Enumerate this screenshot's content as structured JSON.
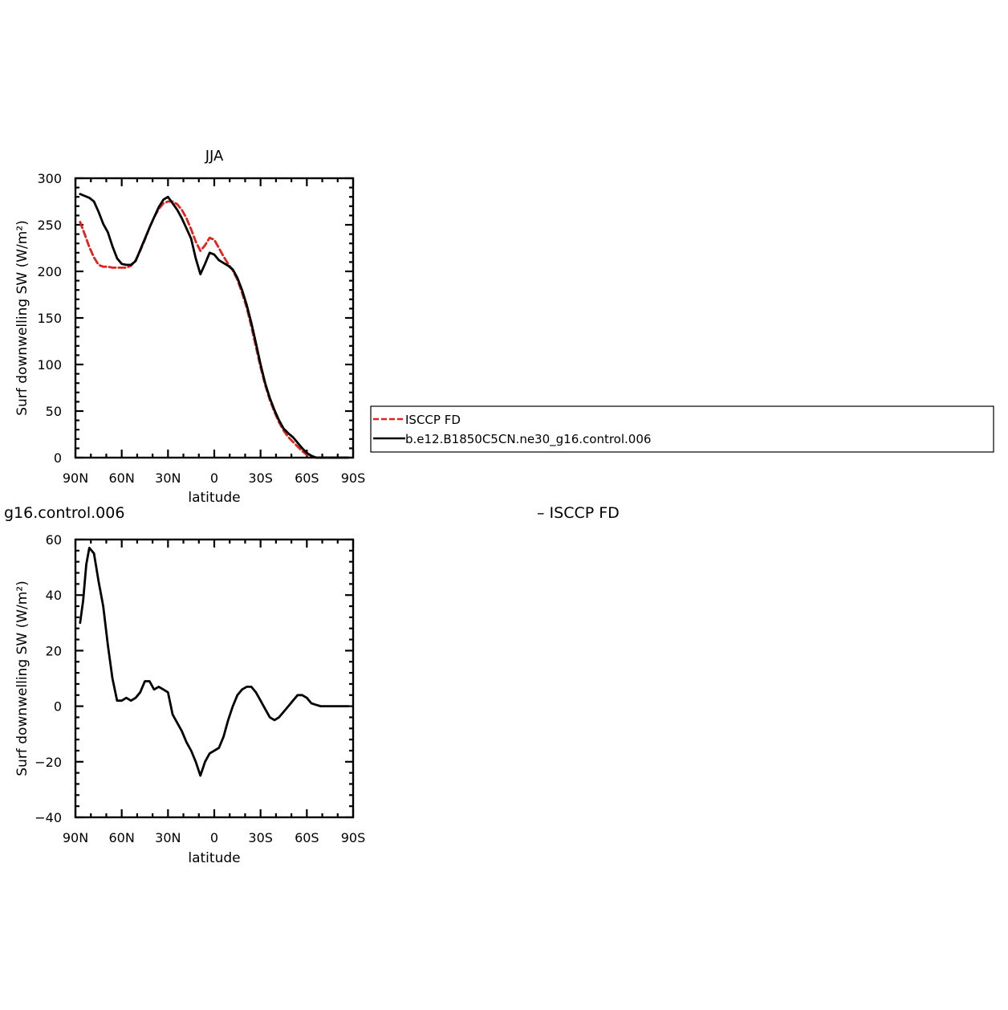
{
  "colors": {
    "obs": "#e8201a",
    "model": "#000000",
    "frame": "#000000"
  },
  "fragments": {
    "left": "g16.control.006",
    "right": "– ISCCP FD"
  },
  "legend": {
    "entries": [
      {
        "label": "ISCCP FD",
        "color": "#e8201a",
        "style": "dashed"
      },
      {
        "label": "b.e12.B1850C5CN.ne30_g16.control.006",
        "color": "#000000",
        "style": "solid"
      }
    ]
  },
  "chart_data": [
    {
      "type": "line",
      "title": "JJA",
      "xlabel": "latitude",
      "ylabel": "Surf downwelling SW (W/m²)",
      "xlim": [
        -90,
        90
      ],
      "ylim": [
        0,
        300
      ],
      "x_ticks": [
        -90,
        -60,
        -30,
        0,
        30,
        60,
        90
      ],
      "x_tick_labels": [
        "90N",
        "60N",
        "30N",
        "0",
        "30S",
        "60S",
        "90S"
      ],
      "y_ticks": [
        0,
        50,
        100,
        150,
        200,
        250,
        300
      ],
      "y_tick_labels": [
        "0",
        "50",
        "100",
        "150",
        "200",
        "250",
        "300"
      ],
      "series": [
        {
          "name": "ISCCP FD",
          "color": "#e8201a",
          "style": "dashed",
          "x": [
            -87,
            -84,
            -81,
            -78,
            -75,
            -72,
            -69,
            -66,
            -63,
            -60,
            -57,
            -54,
            -51,
            -48,
            -45,
            -42,
            -39,
            -36,
            -33,
            -30,
            -27,
            -24,
            -21,
            -18,
            -15,
            -12,
            -9,
            -6,
            -3,
            0,
            3,
            6,
            9,
            12,
            15,
            18,
            21,
            24,
            27,
            30,
            33,
            36,
            39,
            42,
            45,
            48,
            51,
            54,
            57,
            60,
            63,
            66,
            69,
            72,
            75,
            78,
            81,
            84,
            87
          ],
          "y": [
            253,
            240,
            226,
            215,
            207,
            205,
            205,
            204,
            204,
            204,
            204,
            206,
            212,
            222,
            234,
            247,
            258,
            267,
            273,
            275,
            275,
            272,
            266,
            257,
            245,
            232,
            222,
            228,
            236,
            234,
            225,
            216,
            208,
            201,
            191,
            177,
            161,
            141,
            119,
            97,
            78,
            62,
            49,
            38,
            29,
            22,
            17,
            12,
            7,
            3,
            1,
            0,
            0,
            0,
            0,
            0,
            0,
            0,
            0
          ]
        },
        {
          "name": "b.e12.B1850C5CN.ne30_g16.control.006",
          "color": "#000000",
          "style": "solid",
          "x": [
            -87,
            -84,
            -81,
            -78,
            -75,
            -72,
            -69,
            -66,
            -63,
            -60,
            -57,
            -54,
            -51,
            -48,
            -45,
            -42,
            -39,
            -36,
            -33,
            -30,
            -27,
            -24,
            -21,
            -18,
            -15,
            -12,
            -9,
            -6,
            -3,
            0,
            3,
            6,
            9,
            12,
            15,
            18,
            21,
            24,
            27,
            30,
            33,
            36,
            39,
            42,
            45,
            48,
            51,
            54,
            57,
            60,
            63,
            66,
            69,
            72,
            75,
            78,
            81,
            84,
            87
          ],
          "y": [
            283,
            281,
            279,
            275,
            264,
            251,
            242,
            227,
            214,
            208,
            207,
            207,
            211,
            223,
            235,
            247,
            258,
            269,
            277,
            280,
            273,
            266,
            257,
            246,
            235,
            214,
            197,
            208,
            220,
            218,
            212,
            209,
            206,
            202,
            193,
            180,
            164,
            145,
            123,
            100,
            80,
            64,
            51,
            40,
            31,
            26,
            22,
            16,
            10,
            5,
            2,
            0,
            0,
            0,
            0,
            0,
            0,
            0,
            0
          ]
        }
      ]
    },
    {
      "type": "line",
      "title": "",
      "xlabel": "latitude",
      "ylabel": "Surf downwelling SW (W/m²)",
      "xlim": [
        -90,
        90
      ],
      "ylim": [
        -40,
        60
      ],
      "x_ticks": [
        -90,
        -60,
        -30,
        0,
        30,
        60,
        90
      ],
      "x_tick_labels": [
        "90N",
        "60N",
        "30N",
        "0",
        "30S",
        "60S",
        "90S"
      ],
      "y_ticks": [
        -40,
        -20,
        0,
        20,
        40,
        60
      ],
      "y_tick_labels": [
        "−40",
        "−20",
        "0",
        "20",
        "40",
        "60"
      ],
      "series": [
        {
          "color": "#000000",
          "style": "solid",
          "x": [
            -87,
            -85,
            -83,
            -81,
            -78,
            -75,
            -72,
            -69,
            -66,
            -63,
            -60,
            -57,
            -54,
            -51,
            -48,
            -45,
            -42,
            -39,
            -36,
            -33,
            -30,
            -27,
            -24,
            -21,
            -18,
            -15,
            -12,
            -9,
            -6,
            -3,
            0,
            3,
            6,
            9,
            12,
            15,
            18,
            21,
            24,
            27,
            30,
            33,
            36,
            39,
            42,
            45,
            48,
            51,
            54,
            57,
            60,
            63,
            66,
            69,
            72,
            75,
            78,
            81,
            84,
            87
          ],
          "y": [
            30,
            38,
            51,
            57,
            55,
            45,
            36,
            22,
            10,
            2,
            2,
            3,
            2,
            3,
            5,
            9,
            9,
            6,
            7,
            6,
            5,
            -3,
            -6,
            -9,
            -13,
            -16,
            -20,
            -25,
            -20,
            -17,
            -16,
            -15,
            -11,
            -5,
            0,
            4,
            6,
            7,
            7,
            5,
            2,
            -1,
            -4,
            -5,
            -4,
            -2,
            0,
            2,
            4,
            4,
            3,
            1,
            0.5,
            0,
            0,
            0,
            0,
            0,
            0,
            0
          ]
        }
      ]
    }
  ]
}
